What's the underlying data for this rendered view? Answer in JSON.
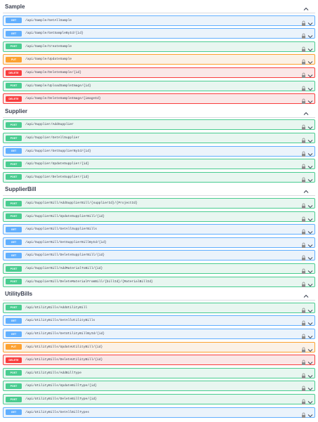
{
  "sections": [
    {
      "title": "Sample",
      "operations": [
        {
          "method": "GET",
          "path": "/api/Sample/GetAllSample"
        },
        {
          "method": "GET",
          "path": "/api/Sample/GetSampleById/{id}"
        },
        {
          "method": "POST",
          "path": "/api/Sample/CreateSample"
        },
        {
          "method": "PUT",
          "path": "/api/Sample/UpdateSample"
        },
        {
          "method": "DELETE",
          "path": "/api/Sample/DeleteSample/{id}"
        },
        {
          "method": "POST",
          "path": "/api/Sample/UploadSampleImage/{id}"
        },
        {
          "method": "DELETE",
          "path": "/api/Sample/DeleteSampleImage/{imageId}"
        }
      ]
    },
    {
      "title": "Supplier",
      "operations": [
        {
          "method": "POST",
          "path": "/api/Supplier/AddSupplier"
        },
        {
          "method": "POST",
          "path": "/api/Supplier/GetAllSupplier"
        },
        {
          "method": "GET",
          "path": "/api/Supplier/GetSupplierById/{id}"
        },
        {
          "method": "POST",
          "path": "/api/Supplier/UpdateSupplier/{id}"
        },
        {
          "method": "POST",
          "path": "/api/Supplier/DeleteSupplier/{id}"
        }
      ]
    },
    {
      "title": "SupplierBill",
      "operations": [
        {
          "method": "POST",
          "path": "/api/SupplierBill/AddSupplierBill/{supplierId}/{ProjectId}"
        },
        {
          "method": "POST",
          "path": "/api/SupplierBill/UpdateSupplierBill/{id}"
        },
        {
          "method": "GET",
          "path": "/api/SupplierBill/GetAllSupplierBills"
        },
        {
          "method": "GET",
          "path": "/api/SupplierBill/GetSupplierBillById/{id}"
        },
        {
          "method": "GET",
          "path": "/api/SupplierBill/DeleteSupplierBill/{id}"
        },
        {
          "method": "POST",
          "path": "/api/SupplierBill/AddMaterialToBill/{id}"
        },
        {
          "method": "POST",
          "path": "/api/SupplierBill/DeleteMaterialFromBill/{billId}/{MaterialBillId}"
        }
      ]
    },
    {
      "title": "UtilityBills",
      "operations": [
        {
          "method": "POST",
          "path": "/api/UtilityBills/AddUtilityBill"
        },
        {
          "method": "GET",
          "path": "/api/UtilityBills/GetAllUtilityBills"
        },
        {
          "method": "GET",
          "path": "/api/UtilityBills/GetUtilityBillById/{id}"
        },
        {
          "method": "PUT",
          "path": "/api/UtilityBills/UpdateUtilityBill/{id}"
        },
        {
          "method": "DELETE",
          "path": "/api/UtilityBills/DeleteUtilityBill/{id}"
        },
        {
          "method": "POST",
          "path": "/api/UtilityBills/AddBillType"
        },
        {
          "method": "POST",
          "path": "/api/UtilityBills/UpdateBillType/{id}"
        },
        {
          "method": "POST",
          "path": "/api/UtilityBills/DeleteBillType/{id}"
        },
        {
          "method": "GET",
          "path": "/api/UtilityBills/GetAllBillTypes"
        }
      ]
    }
  ]
}
